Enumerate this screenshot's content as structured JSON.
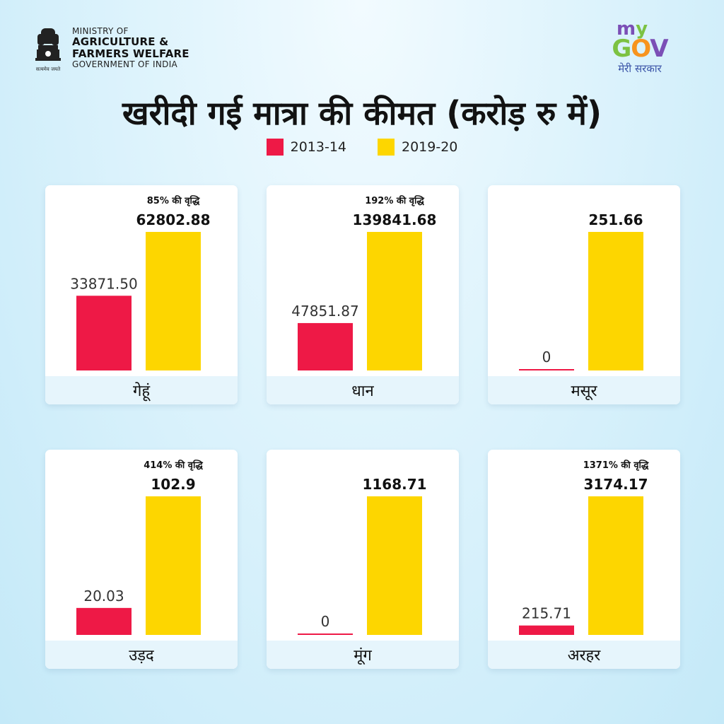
{
  "header": {
    "ministry_line1": "MINISTRY OF",
    "ministry_line2": "AGRICULTURE &",
    "ministry_line3": "FARMERS WELFARE",
    "ministry_line4": "GOVERNMENT OF INDIA",
    "emblem_motto": "सत्यमेव जयते",
    "mygov_my": "my",
    "mygov_gov": "GOV",
    "mygov_tagline": "मेरी सरकार"
  },
  "colors": {
    "series_2013": "#ee1946",
    "series_2019": "#fdd600",
    "mygov_purple": "#7b4fb6",
    "mygov_green": "#7cc242",
    "mygov_orange": "#f7941e",
    "mygov_blue": "#3c55a8"
  },
  "chart_data": {
    "type": "bar",
    "title": "खरीदी गई मात्रा की कीमत (करोड़ रु में)",
    "legend": [
      "2013-14",
      "2019-20"
    ],
    "categories": [
      "2013-14",
      "2019-20"
    ],
    "panels": [
      {
        "crop": "गेहूं",
        "values": [
          33871.5,
          62802.88
        ],
        "labels": [
          "33871.50",
          "62802.88"
        ],
        "growth": "85% की वृद्धि"
      },
      {
        "crop": "धान",
        "values": [
          47851.87,
          139841.68
        ],
        "labels": [
          "47851.87",
          "139841.68"
        ],
        "growth": "192% की वृद्धि"
      },
      {
        "crop": "मसूर",
        "values": [
          0,
          251.66
        ],
        "labels": [
          "0",
          "251.66"
        ],
        "growth": ""
      },
      {
        "crop": "उड़द",
        "values": [
          20.03,
          102.9
        ],
        "labels": [
          "20.03",
          "102.9"
        ],
        "growth": "414% की वृद्धि"
      },
      {
        "crop": "मूंग",
        "values": [
          0,
          1168.71
        ],
        "labels": [
          "0",
          "1168.71"
        ],
        "growth": ""
      },
      {
        "crop": "अरहर",
        "values": [
          215.71,
          3174.17
        ],
        "labels": [
          "215.71",
          "3174.17"
        ],
        "growth": "1371% की वृद्धि"
      }
    ]
  }
}
